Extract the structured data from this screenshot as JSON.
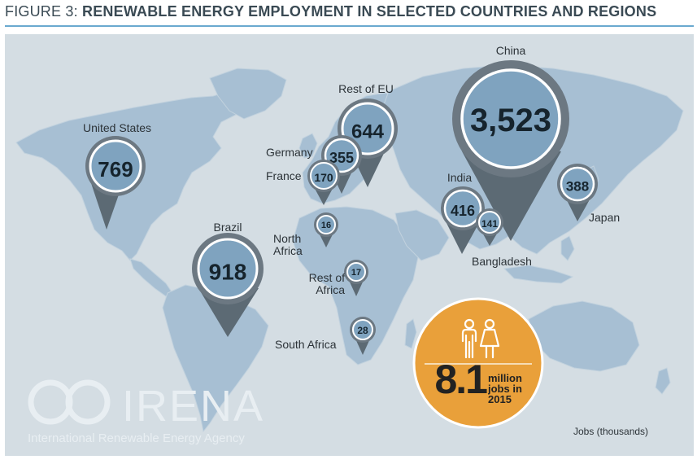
{
  "title": {
    "lead": "FIGURE 3: ",
    "rest": "RENEWABLE ENERGY EMPLOYMENT IN SELECTED COUNTRIES AND REGIONS"
  },
  "markers": [
    {
      "id": "united-states",
      "label": "United States",
      "value": "769"
    },
    {
      "id": "brazil",
      "label": "Brazil",
      "value": "918"
    },
    {
      "id": "rest-of-eu",
      "label": "Rest of EU",
      "value": "644"
    },
    {
      "id": "germany",
      "label": "Germany",
      "value": "355"
    },
    {
      "id": "france",
      "label": "France",
      "value": "170"
    },
    {
      "id": "north-africa",
      "label": "North Africa",
      "value": "16"
    },
    {
      "id": "rest-of-africa",
      "label": "Rest of Africa",
      "value": "17"
    },
    {
      "id": "south-africa",
      "label": "South Africa",
      "value": "28"
    },
    {
      "id": "china",
      "label": "China",
      "value": "3,523"
    },
    {
      "id": "india",
      "label": "India",
      "value": "416"
    },
    {
      "id": "bangladesh",
      "label": "Bangladesh",
      "value": "141"
    },
    {
      "id": "japan",
      "label": "Japan",
      "value": "388"
    }
  ],
  "total": {
    "value": "8.1",
    "unit": "million jobs in 2015",
    "icon": "people-icon",
    "color": "#e9a03a"
  },
  "legend": "Jobs (thousands)",
  "logo": {
    "name": "IRENA",
    "subtitle": "International Renewable Energy Agency"
  },
  "colors": {
    "pin_fill": "#7fa3bf",
    "pin_ring": "#6c7882",
    "pin_tail": "#5c6a74",
    "map_land": "#a7bfd3",
    "background": "#d4dde3",
    "accent_rule": "#6aa9cf"
  }
}
